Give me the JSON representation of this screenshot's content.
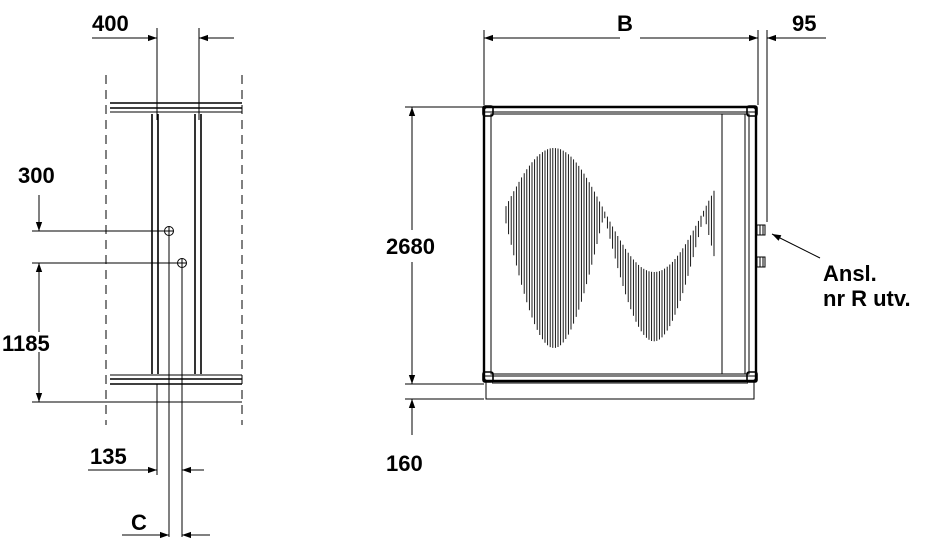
{
  "drawing": {
    "side_view": {
      "dim_top": "400",
      "dim_upper_pipe": "300",
      "dim_lower_pipe": "1185",
      "dim_pipe_offset": "135",
      "dim_c": "C"
    },
    "front_view": {
      "dim_width": "B",
      "dim_connection_offset": "95",
      "dim_height": "2680",
      "dim_base": "160",
      "connection_label_line1": "Ansl.",
      "connection_label_line2": "nr R utv."
    }
  }
}
